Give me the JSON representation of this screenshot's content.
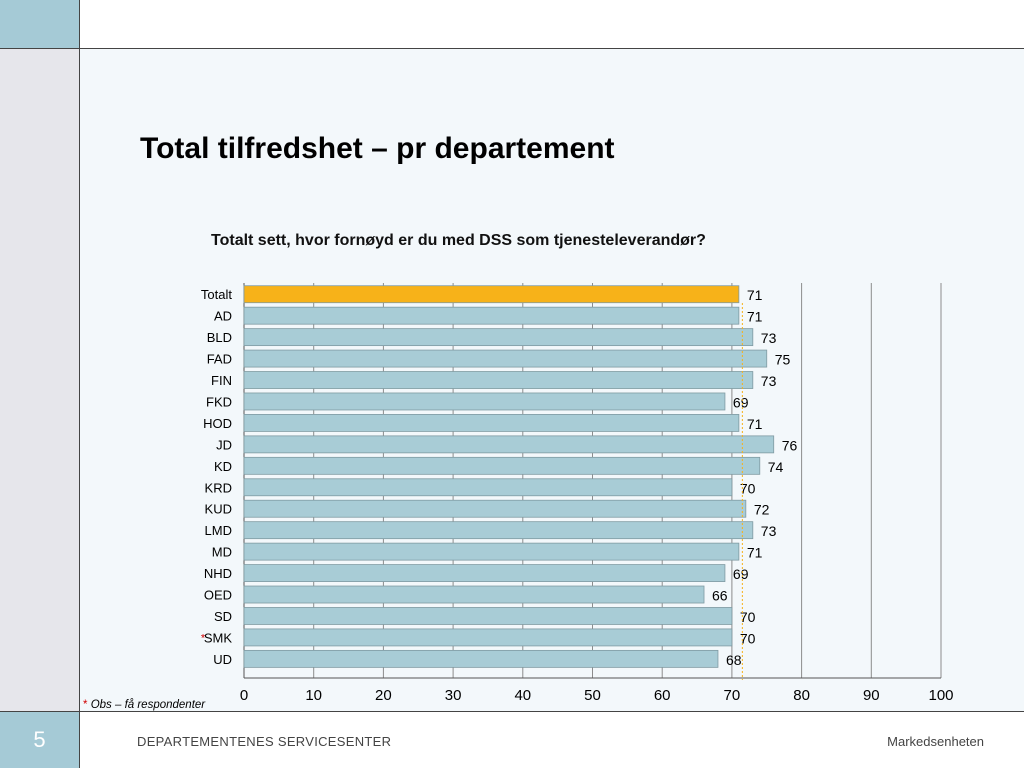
{
  "slide": {
    "page_number": "5",
    "title": "Total tilfredshet – pr departement",
    "footer_left": "DEPARTEMENTENES SERVICESENTER",
    "footer_right": "Markedsenheten",
    "footnote_marker": "*",
    "footnote_text": "Obs – få respondenter"
  },
  "chart_data": {
    "type": "bar",
    "orientation": "horizontal",
    "title": "Totalt sett, hvor fornøyd er du med DSS som tjenesteleverandør?",
    "categories": [
      "Totalt",
      "AD",
      "BLD",
      "FAD",
      "FIN",
      "FKD",
      "HOD",
      "JD",
      "KD",
      "KRD",
      "KUD",
      "LMD",
      "MD",
      "NHD",
      "OED",
      "SD",
      "SMK",
      "UD"
    ],
    "category_markers": [
      "",
      "",
      "",
      "",
      "",
      "",
      "",
      "",
      "",
      "",
      "",
      "",
      "",
      "",
      "",
      "",
      "*",
      ""
    ],
    "values": [
      71,
      71,
      73,
      75,
      73,
      69,
      71,
      76,
      74,
      70,
      72,
      73,
      71,
      69,
      66,
      70,
      70,
      68
    ],
    "highlight_index": 0,
    "reference_line": 71.5,
    "xlim": [
      0,
      100
    ],
    "xticks": [
      0,
      10,
      20,
      30,
      40,
      50,
      60,
      70,
      80,
      90,
      100
    ],
    "grid": "vertical",
    "colors": {
      "bar": "#a8ccd6",
      "highlight": "#f7b219",
      "reference": "#f7b219",
      "grid": "#8c8c8c"
    }
  }
}
